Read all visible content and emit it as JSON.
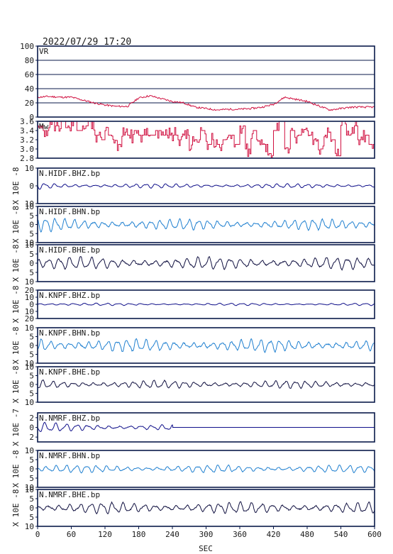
{
  "header": {
    "datetime": "2022/07/29  17:20"
  },
  "chart_data": {
    "type": "line",
    "x_label": "SEC",
    "x_ticks": [
      0,
      60,
      120,
      180,
      240,
      300,
      360,
      420,
      480,
      540,
      600
    ],
    "xlim": [
      0,
      600
    ],
    "panels": [
      {
        "label": "VR",
        "kind": "vr",
        "color": "#d01040",
        "ylim": [
          0,
          100
        ],
        "yticks": [
          0,
          20,
          40,
          60,
          80,
          100
        ],
        "ytick_labels": [
          "0",
          "20",
          "40",
          "60",
          "80",
          "100"
        ],
        "grid_y": [
          20,
          40,
          60,
          80
        ],
        "x": [
          0,
          20,
          40,
          60,
          80,
          100,
          120,
          140,
          160,
          180,
          200,
          220,
          240,
          260,
          280,
          300,
          320,
          340,
          360,
          380,
          400,
          420,
          440,
          460,
          480,
          500,
          520,
          540,
          560,
          580,
          600
        ],
        "y": [
          28,
          29,
          28,
          28,
          24,
          20,
          17,
          15,
          15,
          27,
          30,
          26,
          22,
          20,
          14,
          12,
          10,
          11,
          11,
          12,
          14,
          18,
          28,
          25,
          22,
          16,
          10,
          12,
          14,
          14,
          14
        ]
      },
      {
        "label": "Mw",
        "kind": "mw",
        "color": "#d01040",
        "ylim": [
          2.8,
          3.6
        ],
        "yticks": [
          2.8,
          3.0,
          3.2,
          3.4,
          3.6
        ],
        "ytick_labels": [
          "2.8",
          "3.0",
          "3.2",
          "3.4",
          "3.6"
        ],
        "x": [
          0,
          10,
          20,
          30,
          40,
          50,
          60,
          70,
          80,
          90,
          100,
          110,
          120,
          130,
          140,
          150,
          160,
          170,
          180,
          190,
          200,
          210,
          220,
          230,
          240,
          250,
          260,
          270,
          280,
          290,
          300,
          310,
          320,
          330,
          340,
          350,
          360,
          370,
          380,
          390,
          400,
          410,
          420,
          430,
          440,
          450,
          460,
          470,
          480,
          490,
          500,
          510,
          520,
          530,
          540,
          550,
          560,
          570,
          580,
          590,
          600
        ],
        "y": [
          3.5,
          3.4,
          3.6,
          3.5,
          3.6,
          3.5,
          3.6,
          3.4,
          3.5,
          3.6,
          3.3,
          3.2,
          3.3,
          3.3,
          3.1,
          3.3,
          3.3,
          3.4,
          3.3,
          3.3,
          3.3,
          3.4,
          3.3,
          3.3,
          3.3,
          3.2,
          3.3,
          3.1,
          3.2,
          3.4,
          3.1,
          3.2,
          3.1,
          3.2,
          3.3,
          3.1,
          3.5,
          3.0,
          3.4,
          3.2,
          3.1,
          2.9,
          3.4,
          3.6,
          3.0,
          3.4,
          3.3,
          3.5,
          3.3,
          3.2,
          3.0,
          3.3,
          3.2,
          2.85,
          3.6,
          3.3,
          3.5,
          3.2,
          3.3,
          3.1,
          3.2
        ]
      },
      {
        "label": "N.HIDF.BHZ.bp",
        "kind": "wave",
        "color": "#10108a",
        "unit": "X 10E -8",
        "ylim": [
          -10,
          10
        ],
        "yticks": [
          -10,
          0,
          10
        ],
        "ytick_labels": [
          "10",
          "0",
          "10"
        ],
        "amp": 0.9,
        "period": 18,
        "decay": 0.7,
        "seed": 1
      },
      {
        "label": "N.HIDF.BHN.bp",
        "kind": "wave",
        "color": "#2080d0",
        "unit": "X 10E -8",
        "ylim": [
          -10,
          10
        ],
        "yticks": [
          -10,
          -5,
          0,
          5,
          10
        ],
        "ytick_labels": [
          "10",
          "5",
          "0",
          "5",
          "10"
        ],
        "amp": 2.2,
        "period": 17,
        "decay": 0.4,
        "seed": 2
      },
      {
        "label": "N.HIDF.BHE.bp",
        "kind": "wave",
        "color": "#101040",
        "unit": "X 10E -8",
        "ylim": [
          -10,
          10
        ],
        "yticks": [
          -10,
          -5,
          0,
          5,
          10
        ],
        "ytick_labels": [
          "10",
          "5",
          "0",
          "5",
          "10"
        ],
        "amp": 2.4,
        "period": 19,
        "decay": 0.1,
        "seed": 3
      },
      {
        "label": "N.KNPF.BHZ.bp",
        "kind": "wave",
        "color": "#10108a",
        "unit": "X 10E -8",
        "ylim": [
          -20,
          20
        ],
        "yticks": [
          -20,
          -10,
          0,
          10,
          20
        ],
        "ytick_labels": [
          "20",
          "10",
          "0",
          "10",
          "20"
        ],
        "amp": 1.2,
        "period": 20,
        "decay": 0.6,
        "seed": 4
      },
      {
        "label": "N.KNPF.BHN.bp",
        "kind": "wave",
        "color": "#2080d0",
        "unit": "X 10E -8",
        "ylim": [
          -10,
          10
        ],
        "yticks": [
          -10,
          -5,
          0,
          5,
          10
        ],
        "ytick_labels": [
          "10",
          "5",
          "0",
          "5",
          "10"
        ],
        "amp": 2.6,
        "period": 17,
        "decay": 0.8,
        "seed": 5
      },
      {
        "label": "N.KNPF.BHE.bp",
        "kind": "wave",
        "color": "#101040",
        "unit": "X 10E -8",
        "ylim": [
          -10,
          10
        ],
        "yticks": [
          -10,
          -5,
          0,
          5,
          10
        ],
        "ytick_labels": [
          "10",
          "5",
          "0",
          "5",
          "10"
        ],
        "amp": 1.6,
        "period": 18,
        "decay": 0.2,
        "seed": 6
      },
      {
        "label": "N.NMRF.BHZ.bp",
        "kind": "wave",
        "color": "#10108a",
        "unit": "X 10E -7",
        "ylim": [
          -3,
          3
        ],
        "yticks": [
          -2,
          0,
          2
        ],
        "ytick_labels": [
          "2",
          "0",
          "2"
        ],
        "amp": 0.5,
        "period": 19,
        "decay": 0.7,
        "seed": 7,
        "end": 240
      },
      {
        "label": "N.NMRF.BHN.bp",
        "kind": "wave",
        "color": "#2080d0",
        "unit": "X 10E -8",
        "ylim": [
          -10,
          10
        ],
        "yticks": [
          -10,
          -5,
          0,
          5,
          10
        ],
        "ytick_labels": [
          "10",
          "5",
          "0",
          "5",
          "10"
        ],
        "amp": 1.5,
        "period": 18,
        "decay": 0.1,
        "seed": 8
      },
      {
        "label": "N.NMRF.BHE.bp",
        "kind": "wave",
        "color": "#101040",
        "unit": "X 10E -8",
        "ylim": [
          -10,
          10
        ],
        "yticks": [
          -10,
          -5,
          0,
          5,
          10
        ],
        "ytick_labels": [
          "10",
          "5",
          "0",
          "5",
          "10"
        ],
        "amp": 2.2,
        "period": 19,
        "decay": 0.05,
        "seed": 9
      }
    ]
  }
}
